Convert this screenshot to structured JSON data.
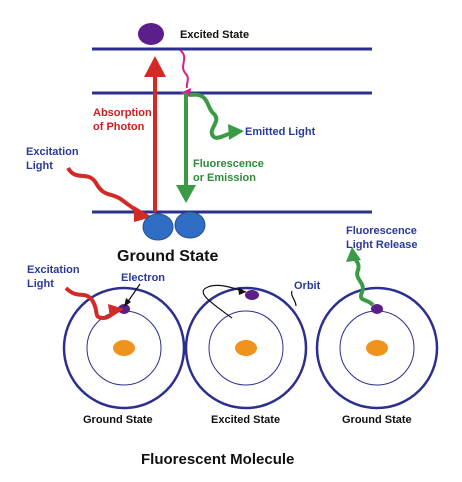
{
  "top_diagram": {
    "excited_state_label": "Excited State",
    "absorption_label": [
      "Absorption",
      "of Photon"
    ],
    "emitted_light_label": "Emitted Light",
    "fluorescence_label": [
      "Fluorescence",
      "or Emission"
    ],
    "excitation_label": [
      "Excitation",
      "Light"
    ],
    "ground_state_label": "Ground State"
  },
  "bottom_diagram": {
    "excitation_label": [
      "Excitation",
      "Light"
    ],
    "electron_label": "Electron",
    "orbit_label": "Orbit",
    "release_label": [
      "Fluorescence",
      "Light Release"
    ],
    "atom_labels": [
      "Ground State",
      "Excited State",
      "Ground State"
    ]
  },
  "caption": "Fluorescent Molecule",
  "colors": {
    "level_line": "#2b2f8f",
    "red_arrow": "#d42a26",
    "green_arrow": "#3a9a45",
    "electron": "#5a1f8a",
    "ground_electron": "#2f6ec4",
    "magenta": "#d4208f",
    "nucleus": "#f0931e",
    "label_blue": "#2a3a9a",
    "label_red": "#c8201f",
    "label_green": "#2f8a3a"
  }
}
